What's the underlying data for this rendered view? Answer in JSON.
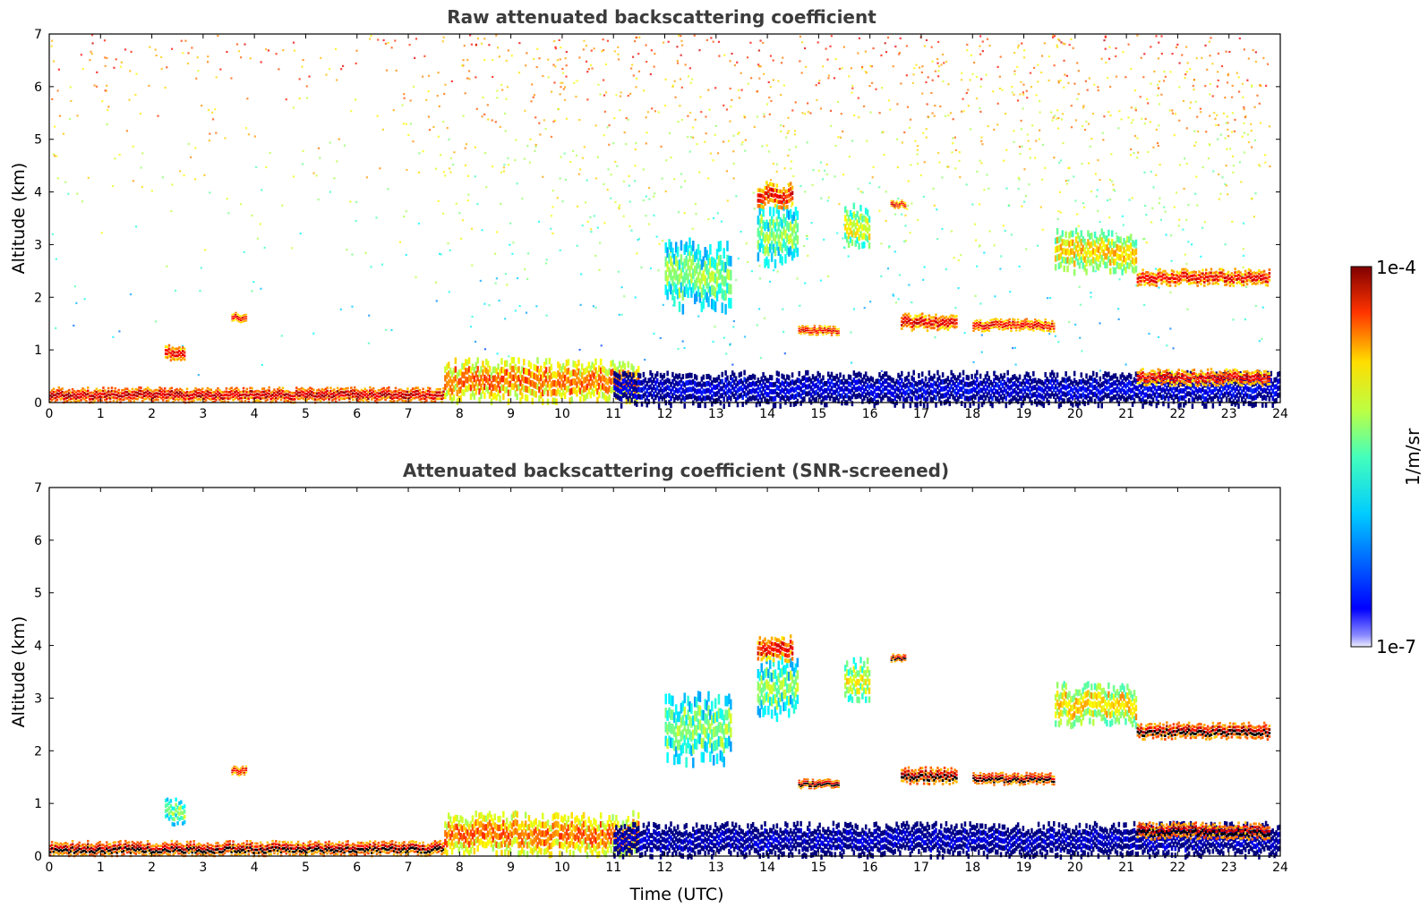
{
  "chart_data": [
    {
      "type": "heatmap",
      "title": "Raw attenuated backscattering coefficient",
      "xlabel": "",
      "ylabel": "Altitude (km)",
      "xlim": [
        0,
        24
      ],
      "ylim": [
        0,
        7
      ],
      "xticks": [
        "0",
        "1",
        "2",
        "3",
        "4",
        "5",
        "6",
        "7",
        "8",
        "9",
        "10",
        "11",
        "12",
        "13",
        "14",
        "15",
        "16",
        "17",
        "18",
        "19",
        "20",
        "21",
        "22",
        "23",
        "24"
      ],
      "yticks": [
        "0",
        "1",
        "2",
        "3",
        "4",
        "5",
        "6",
        "7"
      ],
      "screened": false,
      "features": [
        {
          "t0": 0.0,
          "t1": 7.7,
          "z": 0.12,
          "thick": 0.18,
          "level": 1.0
        },
        {
          "t0": 7.7,
          "t1": 11.5,
          "z": 0.35,
          "thick": 0.5,
          "level": 0.85
        },
        {
          "t0": 11.0,
          "t1": 24.0,
          "z": 0.2,
          "thick": 0.4,
          "level": 0.18
        },
        {
          "t0": 2.25,
          "t1": 2.65,
          "z": 0.9,
          "thick": 0.2,
          "level": 0.95
        },
        {
          "t0": 3.55,
          "t1": 3.85,
          "z": 1.6,
          "thick": 0.12,
          "level": 0.95
        },
        {
          "t0": 12.0,
          "t1": 13.3,
          "z": 2.3,
          "thick": 0.8,
          "level": 0.6
        },
        {
          "t0": 13.8,
          "t1": 14.6,
          "z": 3.1,
          "thick": 0.7,
          "level": 0.6
        },
        {
          "t0": 13.8,
          "t1": 14.5,
          "z": 3.9,
          "thick": 0.3,
          "level": 0.95
        },
        {
          "t0": 15.5,
          "t1": 16.0,
          "z": 3.3,
          "thick": 0.5,
          "level": 0.7
        },
        {
          "t0": 16.4,
          "t1": 16.7,
          "z": 3.75,
          "thick": 0.1,
          "level": 0.95
        },
        {
          "t0": 14.6,
          "t1": 15.4,
          "z": 1.35,
          "thick": 0.12,
          "level": 0.95
        },
        {
          "t0": 16.6,
          "t1": 17.7,
          "z": 1.5,
          "thick": 0.2,
          "level": 0.95
        },
        {
          "t0": 18.0,
          "t1": 19.6,
          "z": 1.45,
          "thick": 0.15,
          "level": 0.95
        },
        {
          "t0": 19.6,
          "t1": 21.2,
          "z": 2.8,
          "thick": 0.5,
          "level": 0.75
        },
        {
          "t0": 21.2,
          "t1": 23.8,
          "z": 2.35,
          "thick": 0.2,
          "level": 0.95
        },
        {
          "t0": 21.2,
          "t1": 23.8,
          "z": 0.45,
          "thick": 0.2,
          "level": 0.95
        }
      ]
    },
    {
      "type": "heatmap",
      "title": "Attenuated backscattering coefficient (SNR-screened)",
      "xlabel": "Time (UTC)",
      "ylabel": "Altitude (km)",
      "xlim": [
        0,
        24
      ],
      "ylim": [
        0,
        7
      ],
      "xticks": [
        "0",
        "1",
        "2",
        "3",
        "4",
        "5",
        "6",
        "7",
        "8",
        "9",
        "10",
        "11",
        "12",
        "13",
        "14",
        "15",
        "16",
        "17",
        "18",
        "19",
        "20",
        "21",
        "22",
        "23",
        "24"
      ],
      "yticks": [
        "0",
        "1",
        "2",
        "3",
        "4",
        "5",
        "6",
        "7"
      ],
      "screened": true,
      "features": [
        {
          "t0": 0.0,
          "t1": 7.7,
          "z": 0.12,
          "thick": 0.18,
          "level": 1.0
        },
        {
          "t0": 7.7,
          "t1": 11.5,
          "z": 0.35,
          "thick": 0.5,
          "level": 0.85
        },
        {
          "t0": 11.0,
          "t1": 24.0,
          "z": 0.25,
          "thick": 0.4,
          "level": 0.15
        },
        {
          "t0": 2.25,
          "t1": 2.65,
          "z": 0.8,
          "thick": 0.3,
          "level": 0.6
        },
        {
          "t0": 3.55,
          "t1": 3.85,
          "z": 1.6,
          "thick": 0.12,
          "level": 0.95
        },
        {
          "t0": 12.0,
          "t1": 13.3,
          "z": 2.3,
          "thick": 0.8,
          "level": 0.6
        },
        {
          "t0": 13.8,
          "t1": 14.6,
          "z": 3.1,
          "thick": 0.7,
          "level": 0.6
        },
        {
          "t0": 13.8,
          "t1": 14.5,
          "z": 3.9,
          "thick": 0.3,
          "level": 0.95
        },
        {
          "t0": 15.5,
          "t1": 16.0,
          "z": 3.3,
          "thick": 0.5,
          "level": 0.7
        },
        {
          "t0": 16.4,
          "t1": 16.7,
          "z": 3.75,
          "thick": 0.1,
          "level": 1.0
        },
        {
          "t0": 14.6,
          "t1": 15.4,
          "z": 1.35,
          "thick": 0.12,
          "level": 1.0
        },
        {
          "t0": 16.6,
          "t1": 17.7,
          "z": 1.5,
          "thick": 0.2,
          "level": 1.0
        },
        {
          "t0": 18.0,
          "t1": 19.6,
          "z": 1.45,
          "thick": 0.15,
          "level": 1.0
        },
        {
          "t0": 19.6,
          "t1": 21.2,
          "z": 2.8,
          "thick": 0.5,
          "level": 0.75
        },
        {
          "t0": 21.2,
          "t1": 23.8,
          "z": 2.35,
          "thick": 0.2,
          "level": 1.0
        },
        {
          "t0": 21.2,
          "t1": 23.8,
          "z": 0.45,
          "thick": 0.2,
          "level": 1.0
        }
      ]
    }
  ],
  "colorbar": {
    "max_label": "1e-4",
    "min_label": "1e-7",
    "unit_label": "1/m/sr",
    "colormap": "jet"
  }
}
